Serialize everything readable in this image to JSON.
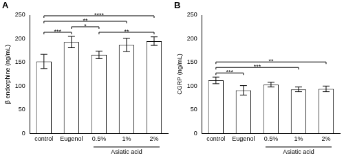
{
  "chart_data": [
    {
      "type": "bar",
      "panel": "A",
      "y_label": "β endorphine (ng/mL)",
      "categories": [
        "control",
        "Eugenol",
        "0.5%",
        "1%",
        "2%"
      ],
      "values": [
        152,
        193,
        166,
        187,
        195
      ],
      "errors": [
        15,
        12,
        8,
        14,
        9
      ],
      "color": "#ffffff",
      "grid": false,
      "ylim": [
        0,
        250
      ],
      "yticks": [
        0,
        50,
        100,
        150,
        200,
        250
      ],
      "group": {
        "label": "Asiatic acid",
        "from": "0.5%",
        "to": "2%"
      },
      "significance": [
        {
          "from": "control",
          "to": "Eugenol",
          "label": "***"
        },
        {
          "from": "Eugenol",
          "to": "0.5%",
          "label": "*"
        },
        {
          "from": "0.5%",
          "to": "2%",
          "label": "**"
        },
        {
          "from": "control",
          "to": "1%",
          "label": "**"
        },
        {
          "from": "control",
          "to": "2%",
          "label": "****"
        }
      ]
    },
    {
      "type": "bar",
      "panel": "B",
      "y_label": "CGRP (ng/mL)",
      "categories": [
        "control",
        "Eugenol",
        "0.5%",
        "1%",
        "2%"
      ],
      "values": [
        112,
        91,
        103,
        93,
        94
      ],
      "errors": [
        7,
        10,
        5,
        5,
        6
      ],
      "color": "#ffffff",
      "grid": false,
      "ylim": [
        0,
        250
      ],
      "yticks": [
        0,
        50,
        100,
        150,
        200,
        250
      ],
      "group": {
        "label": "Asiatic acid",
        "from": "0.5%",
        "to": "2%"
      },
      "significance": [
        {
          "from": "control",
          "to": "Eugenol",
          "label": "***"
        },
        {
          "from": "control",
          "to": "1%",
          "label": "***"
        },
        {
          "from": "control",
          "to": "2%",
          "label": "**"
        }
      ]
    }
  ]
}
